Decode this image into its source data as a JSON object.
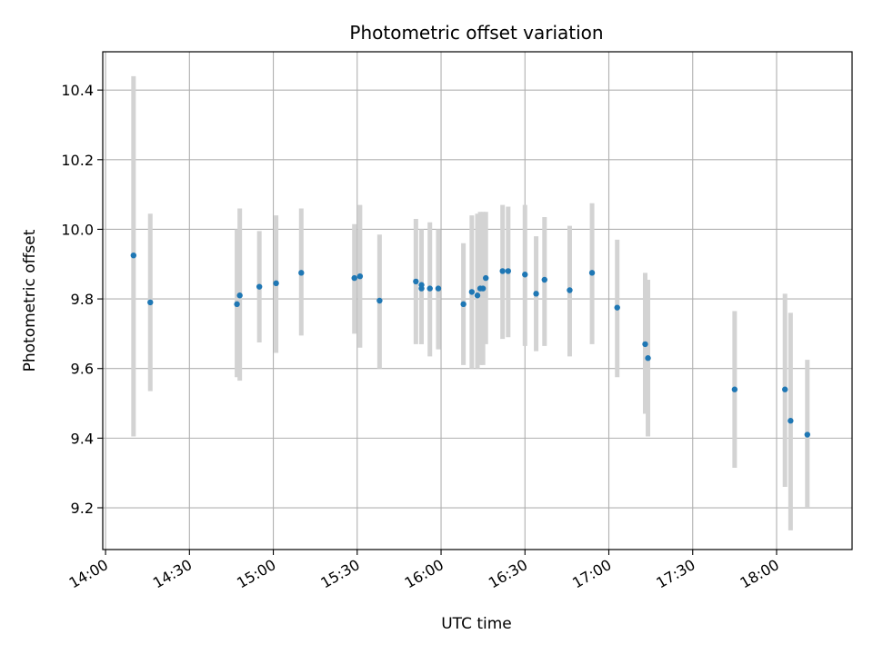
{
  "chart_data": {
    "type": "scatter",
    "title": "Photometric offset variation",
    "xlabel": "UTC time",
    "ylabel": "Photometric offset",
    "xlim": [
      "13:59",
      "18:27"
    ],
    "ylim": [
      9.08,
      10.51
    ],
    "grid": true,
    "x_ticks": [
      "14:00",
      "14:30",
      "15:00",
      "15:30",
      "16:00",
      "16:30",
      "17:00",
      "17:30",
      "18:00"
    ],
    "y_ticks": [
      9.2,
      9.4,
      9.6,
      9.8,
      10.0,
      10.2,
      10.4
    ],
    "colors": {
      "point": "#1f77b4",
      "errorbar": "#d3d3d3",
      "grid": "#b0b0b0"
    },
    "series": [
      {
        "points": [
          {
            "t": "14:10",
            "y": 9.925,
            "lo": 9.405,
            "hi": 10.44
          },
          {
            "t": "14:16",
            "y": 9.79,
            "lo": 9.535,
            "hi": 10.045
          },
          {
            "t": "14:47",
            "y": 9.785,
            "lo": 9.575,
            "hi": 10.0
          },
          {
            "t": "14:48",
            "y": 9.81,
            "lo": 9.565,
            "hi": 10.06
          },
          {
            "t": "14:55",
            "y": 9.835,
            "lo": 9.675,
            "hi": 9.995
          },
          {
            "t": "15:01",
            "y": 9.845,
            "lo": 9.645,
            "hi": 10.04
          },
          {
            "t": "15:10",
            "y": 9.875,
            "lo": 9.695,
            "hi": 10.06
          },
          {
            "t": "15:29",
            "y": 9.86,
            "lo": 9.7,
            "hi": 10.015
          },
          {
            "t": "15:31",
            "y": 9.865,
            "lo": 9.66,
            "hi": 10.07
          },
          {
            "t": "15:38",
            "y": 9.795,
            "lo": 9.6,
            "hi": 9.985
          },
          {
            "t": "15:51",
            "y": 9.85,
            "lo": 9.67,
            "hi": 10.03
          },
          {
            "t": "15:53",
            "y": 9.83,
            "lo": 9.67,
            "hi": 9.995
          },
          {
            "t": "15:53",
            "y": 9.84,
            "lo": 9.67,
            "hi": 10.0
          },
          {
            "t": "15:56",
            "y": 9.83,
            "lo": 9.635,
            "hi": 10.02
          },
          {
            "t": "15:59",
            "y": 9.83,
            "lo": 9.655,
            "hi": 10.0
          },
          {
            "t": "16:08",
            "y": 9.785,
            "lo": 9.61,
            "hi": 9.96
          },
          {
            "t": "16:11",
            "y": 9.82,
            "lo": 9.6,
            "hi": 10.04
          },
          {
            "t": "16:13",
            "y": 9.81,
            "lo": 9.6,
            "hi": 10.045
          },
          {
            "t": "16:14",
            "y": 9.83,
            "lo": 9.61,
            "hi": 10.05
          },
          {
            "t": "16:15",
            "y": 9.83,
            "lo": 9.61,
            "hi": 10.05
          },
          {
            "t": "16:16",
            "y": 9.86,
            "lo": 9.67,
            "hi": 10.05
          },
          {
            "t": "16:22",
            "y": 9.88,
            "lo": 9.685,
            "hi": 10.07
          },
          {
            "t": "16:24",
            "y": 9.88,
            "lo": 9.69,
            "hi": 10.065
          },
          {
            "t": "16:30",
            "y": 9.87,
            "lo": 9.665,
            "hi": 10.07
          },
          {
            "t": "16:34",
            "y": 9.815,
            "lo": 9.65,
            "hi": 9.98
          },
          {
            "t": "16:37",
            "y": 9.855,
            "lo": 9.665,
            "hi": 10.035
          },
          {
            "t": "16:46",
            "y": 9.825,
            "lo": 9.635,
            "hi": 10.01
          },
          {
            "t": "16:54",
            "y": 9.875,
            "lo": 9.67,
            "hi": 10.075
          },
          {
            "t": "17:03",
            "y": 9.775,
            "lo": 9.575,
            "hi": 9.97
          },
          {
            "t": "17:13",
            "y": 9.67,
            "lo": 9.47,
            "hi": 9.875
          },
          {
            "t": "17:14",
            "y": 9.63,
            "lo": 9.405,
            "hi": 9.855
          },
          {
            "t": "17:45",
            "y": 9.54,
            "lo": 9.315,
            "hi": 9.765
          },
          {
            "t": "18:03",
            "y": 9.54,
            "lo": 9.26,
            "hi": 9.815
          },
          {
            "t": "18:05",
            "y": 9.45,
            "lo": 9.135,
            "hi": 9.76
          },
          {
            "t": "18:11",
            "y": 9.41,
            "lo": 9.2,
            "hi": 9.625
          }
        ]
      }
    ]
  }
}
